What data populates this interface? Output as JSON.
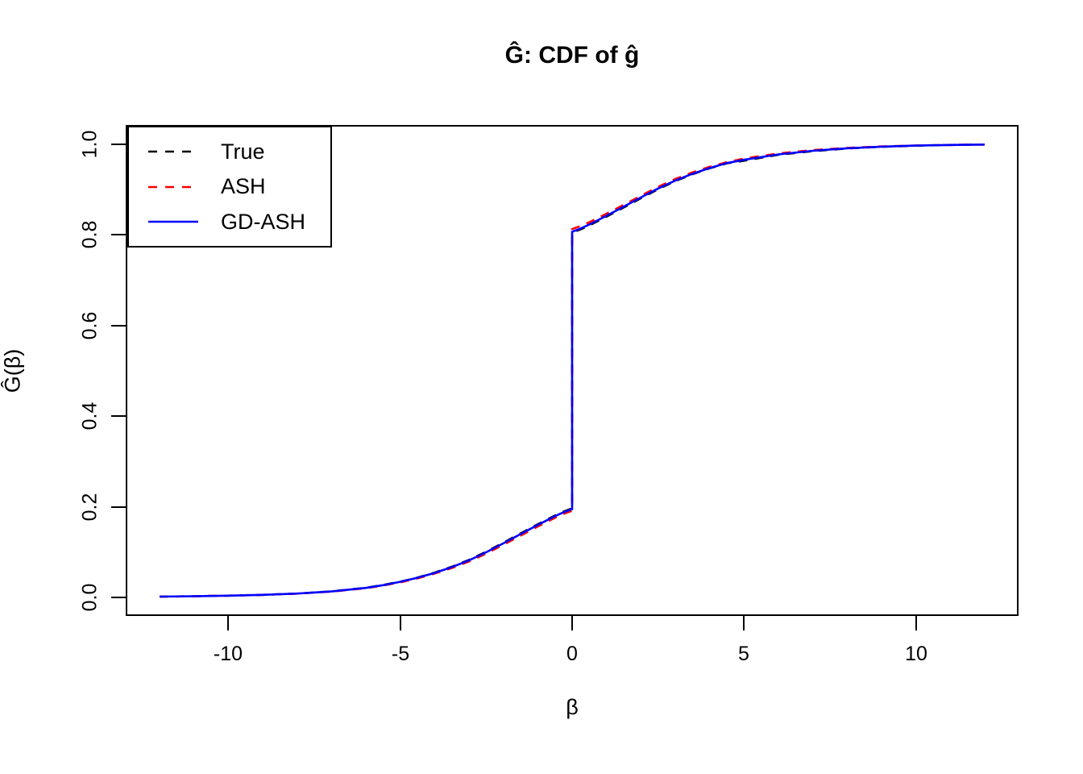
{
  "chart_data": {
    "type": "line",
    "title": "Ĝ: CDF of ĝ",
    "xlabel": "β",
    "ylabel": "Ĝ(β)",
    "xlim": [
      -12.96,
      12.96
    ],
    "ylim": [
      -0.04,
      1.04
    ],
    "grid": false,
    "legend_position": "topleft",
    "x_ticks": {
      "values": [
        -10,
        -5,
        0,
        5,
        10
      ],
      "labels": [
        "-10",
        "-5",
        "0",
        "5",
        "10"
      ]
    },
    "y_ticks": {
      "values": [
        0.0,
        0.2,
        0.4,
        0.6,
        0.8,
        1.0
      ],
      "labels": [
        "0.0",
        "0.2",
        "0.4",
        "0.6",
        "0.8",
        "1.0"
      ]
    },
    "series": [
      {
        "name": "True",
        "color": "#000000",
        "style": "dashed",
        "points": [
          [
            -12,
            0.001
          ],
          [
            -11,
            0.0018
          ],
          [
            -10,
            0.003
          ],
          [
            -9,
            0.0048
          ],
          [
            -8,
            0.0077
          ],
          [
            -7,
            0.0125
          ],
          [
            -6,
            0.0205
          ],
          [
            -5.5,
            0.0265
          ],
          [
            -5,
            0.034
          ],
          [
            -4.5,
            0.043
          ],
          [
            -4,
            0.054
          ],
          [
            -3.5,
            0.067
          ],
          [
            -3,
            0.082
          ],
          [
            -2.5,
            0.1
          ],
          [
            -2,
            0.12
          ],
          [
            -1.5,
            0.1405
          ],
          [
            -1,
            0.1605
          ],
          [
            -0.5,
            0.18
          ],
          [
            -0.25,
            0.1885
          ],
          [
            0,
            0.196
          ],
          [
            0,
            0.804
          ],
          [
            0.25,
            0.8115
          ],
          [
            0.5,
            0.82
          ],
          [
            1,
            0.8395
          ],
          [
            1.5,
            0.8595
          ],
          [
            2,
            0.88
          ],
          [
            2.5,
            0.9
          ],
          [
            3,
            0.918
          ],
          [
            3.5,
            0.933
          ],
          [
            4,
            0.946
          ],
          [
            4.5,
            0.957
          ],
          [
            5,
            0.963
          ],
          [
            6,
            0.976
          ],
          [
            7,
            0.984
          ],
          [
            8,
            0.9898
          ],
          [
            9,
            0.9936
          ],
          [
            10,
            0.996
          ],
          [
            11,
            0.9976
          ],
          [
            12,
            0.9985
          ]
        ]
      },
      {
        "name": "ASH",
        "color": "#FF0000",
        "style": "dashed",
        "points": [
          [
            -12,
            0.001
          ],
          [
            -11,
            0.0018
          ],
          [
            -10,
            0.003
          ],
          [
            -9,
            0.0048
          ],
          [
            -8,
            0.0075
          ],
          [
            -7,
            0.012
          ],
          [
            -6,
            0.0195
          ],
          [
            -5.5,
            0.0255
          ],
          [
            -5,
            0.0325
          ],
          [
            -4.5,
            0.0412
          ],
          [
            -4,
            0.0518
          ],
          [
            -3.5,
            0.064
          ],
          [
            -3,
            0.0785
          ],
          [
            -2.5,
            0.096
          ],
          [
            -2,
            0.1155
          ],
          [
            -1.5,
            0.1355
          ],
          [
            -1,
            0.1555
          ],
          [
            -0.5,
            0.175
          ],
          [
            -0.25,
            0.1835
          ],
          [
            0,
            0.1905
          ],
          [
            0,
            0.812
          ],
          [
            0.25,
            0.819
          ],
          [
            0.5,
            0.827
          ],
          [
            1,
            0.846
          ],
          [
            1.5,
            0.8655
          ],
          [
            2,
            0.8855
          ],
          [
            2.5,
            0.905
          ],
          [
            3,
            0.9225
          ],
          [
            3.5,
            0.937
          ],
          [
            4,
            0.9495
          ],
          [
            4.5,
            0.9595
          ],
          [
            5,
            0.9675
          ],
          [
            6,
            0.979
          ],
          [
            7,
            0.9862
          ],
          [
            8,
            0.9912
          ],
          [
            9,
            0.9944
          ],
          [
            10,
            0.9964
          ],
          [
            11,
            0.9978
          ],
          [
            12,
            0.9986
          ]
        ]
      },
      {
        "name": "GD-ASH",
        "color": "#0000FF",
        "style": "solid",
        "points": [
          [
            -12,
            0.001
          ],
          [
            -11,
            0.0018
          ],
          [
            -10,
            0.003
          ],
          [
            -9,
            0.0048
          ],
          [
            -8,
            0.0076
          ],
          [
            -7,
            0.0123
          ],
          [
            -6,
            0.0202
          ],
          [
            -5.5,
            0.0262
          ],
          [
            -5,
            0.0336
          ],
          [
            -4.5,
            0.0425
          ],
          [
            -4,
            0.0533
          ],
          [
            -3.5,
            0.0661
          ],
          [
            -3,
            0.081
          ],
          [
            -2.5,
            0.0988
          ],
          [
            -2,
            0.1186
          ],
          [
            -1.5,
            0.139
          ],
          [
            -1,
            0.159
          ],
          [
            -0.5,
            0.1785
          ],
          [
            -0.25,
            0.187
          ],
          [
            0,
            0.194
          ],
          [
            0,
            0.806
          ],
          [
            0.25,
            0.8135
          ],
          [
            0.5,
            0.822
          ],
          [
            1,
            0.8415
          ],
          [
            1.5,
            0.8615
          ],
          [
            2,
            0.8818
          ],
          [
            2.5,
            0.9015
          ],
          [
            3,
            0.9192
          ],
          [
            3.5,
            0.934
          ],
          [
            4,
            0.9468
          ],
          [
            4.5,
            0.9576
          ],
          [
            5,
            0.965
          ],
          [
            6,
            0.9768
          ],
          [
            7,
            0.9848
          ],
          [
            8,
            0.9903
          ],
          [
            9,
            0.9939
          ],
          [
            10,
            0.9962
          ],
          [
            11,
            0.9977
          ],
          [
            12,
            0.9985
          ]
        ]
      }
    ]
  }
}
